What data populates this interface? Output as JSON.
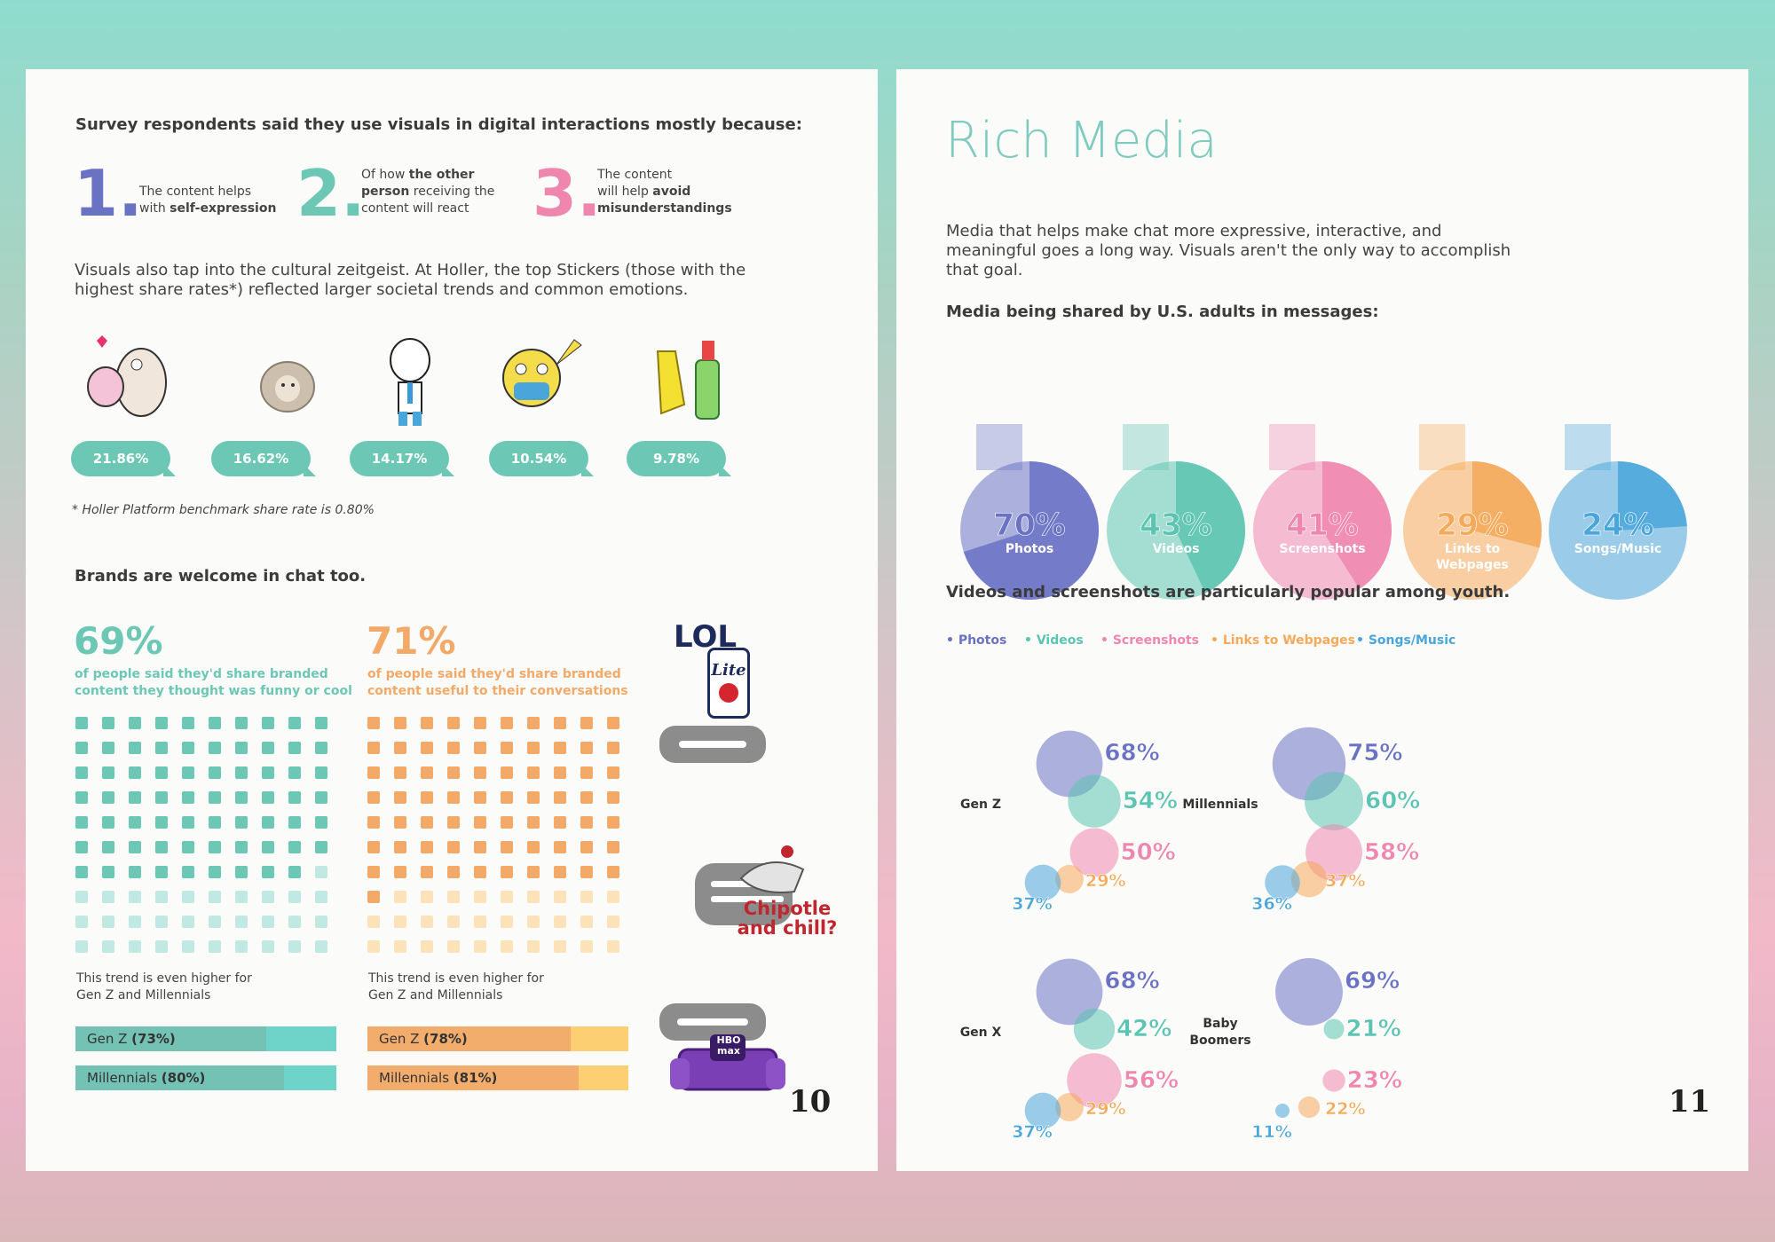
{
  "page10": {
    "heading": "Survey respondents said they use visuals in digital interactions mostly because:",
    "reasons": [
      {
        "num": "1.",
        "color": "#6a72c4",
        "pre": "The content helps",
        "line2pre": "with ",
        "bold": "self-expression",
        "post": ""
      },
      {
        "num": "2.",
        "color": "#6cc8b5",
        "pre": "Of how ",
        "bold1": "the other",
        "bold2": "person",
        "l2rest": " receiving the",
        "l3": "content will react"
      },
      {
        "num": "3.",
        "color": "#ee86ae",
        "pre": "The content",
        "l2pre": "will help ",
        "bold1": "avoid",
        "bold2": "misunderstandings"
      }
    ],
    "zeitgeist": "Visuals also tap into the cultural zeitgeist. At Holler, the top Stickers (those with the highest share rates*) reflected larger societal trends and common emotions.",
    "stickers": [
      "21.86%",
      "16.62%",
      "14.17%",
      "10.54%",
      "9.78%"
    ],
    "footnote": "* Holler Platform benchmark share rate is 0.80%",
    "brands_heading": "Brands are welcome in chat too.",
    "stat1": {
      "value": "69%",
      "text_l1": "of people said they'd share branded",
      "text_l2": "content they thought was funny or cool",
      "color": "#6cc8b5",
      "light": "#bfe9e2",
      "filled": 69
    },
    "stat2": {
      "value": "71%",
      "text_l1": "of people said they'd share branded",
      "text_l2": "content useful to their conversations",
      "color": "#f3a968",
      "light": "#fce2b8",
      "filled": 71
    },
    "trend_l1": "This trend is even higher for",
    "trend_l2": "Gen Z and Millennials",
    "bars_left": [
      {
        "label": "Gen Z ",
        "val": "(73%)",
        "pct": 73
      },
      {
        "label": "Millennials ",
        "val": "(80%)",
        "pct": 80
      }
    ],
    "bars_right": [
      {
        "label": "Gen Z ",
        "val": "(78%)",
        "pct": 78
      },
      {
        "label": "Millennials ",
        "val": "(81%)",
        "pct": 81
      }
    ],
    "lol": "LOL",
    "lite": "Lite",
    "chipotle_l1": "Chipotle",
    "chipotle_l2": "and chill?",
    "hbo": "HBO",
    "max": "max",
    "page_number": "10"
  },
  "page11": {
    "title": "Rich Media",
    "intro": "Media that helps make chat more expressive, interactive, and meaningful goes a long way. Visuals aren't the only way to accomplish that goal.",
    "shared_heading": "Media being shared by U.S. adults in messages:",
    "youth_heading": "Videos and screenshots are particularly popular among youth.",
    "page_number": "11"
  },
  "colors": {
    "photos": "#6a72c4",
    "videos": "#5cc4b0",
    "screenshots": "#ee86ae",
    "links": "#f5a95a",
    "songs": "#4aa6da"
  },
  "chart_data": [
    {
      "type": "pie",
      "title": "Media being shared by U.S. adults in messages:",
      "categories": [
        "Photos",
        "Videos",
        "Screenshots",
        "Links to Webpages",
        "Songs/Music"
      ],
      "labels": [
        "70%",
        "43%",
        "41%",
        "29%",
        "24%"
      ],
      "values": [
        70,
        43,
        41,
        29,
        24
      ]
    },
    {
      "type": "scatter",
      "title": "Videos and screenshots are particularly popular among youth.",
      "legend": [
        "Photos",
        "Videos",
        "Screenshots",
        "Links to Webpages",
        "Songs/Music"
      ],
      "groups": [
        {
          "name": "Gen Z",
          "values": [
            68,
            54,
            50,
            29,
            37
          ]
        },
        {
          "name": "Millennials",
          "values": [
            75,
            60,
            58,
            37,
            36
          ]
        },
        {
          "name": "Gen X",
          "values": [
            68,
            42,
            56,
            29,
            37
          ]
        },
        {
          "name": "Baby Boomers",
          "values": [
            69,
            21,
            23,
            22,
            11
          ]
        }
      ]
    }
  ]
}
